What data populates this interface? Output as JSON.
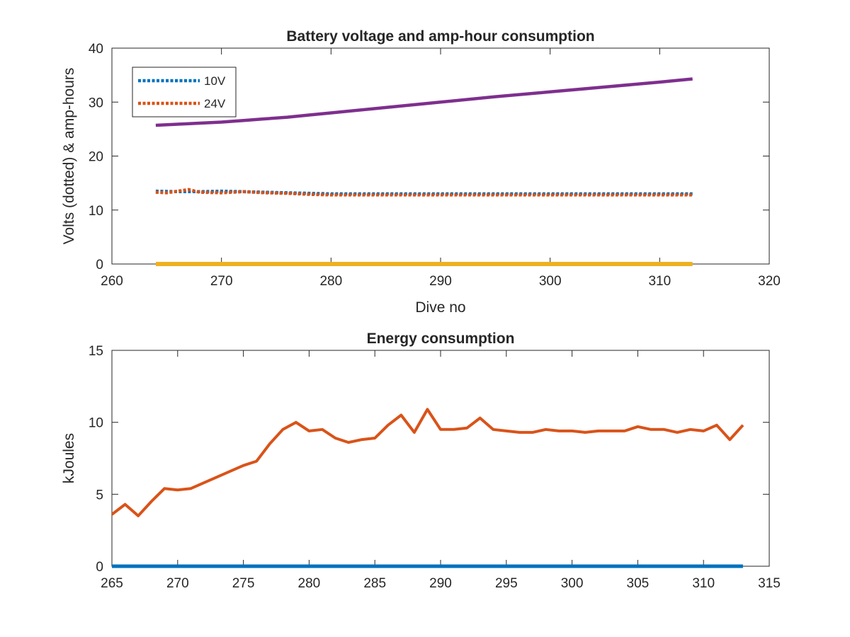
{
  "chart_data": [
    {
      "type": "line",
      "title": "Battery voltage and amp-hour consumption",
      "xlabel": "Dive no",
      "ylabel": "Volts (dotted) & amp-hours",
      "xlim": [
        260,
        320
      ],
      "ylim": [
        0,
        40
      ],
      "xticks": [
        260,
        270,
        280,
        290,
        300,
        310,
        320
      ],
      "yticks": [
        0,
        10,
        20,
        30,
        40
      ],
      "legend": {
        "placement": "top-left",
        "entries": [
          "10V",
          "24V"
        ]
      },
      "series": [
        {
          "name": "10V",
          "style": "dotted",
          "color": "#0072BD",
          "x": [
            264,
            266,
            268,
            270,
            272,
            274,
            276,
            278,
            280,
            285,
            290,
            295,
            300,
            305,
            310,
            313
          ],
          "y": [
            13.5,
            13.4,
            13.4,
            13.5,
            13.4,
            13.3,
            13.2,
            13.1,
            13.0,
            13.0,
            13.0,
            13.0,
            13.0,
            13.0,
            13.0,
            13.0
          ]
        },
        {
          "name": "24V",
          "style": "dotted",
          "color": "#D95319",
          "x": [
            264,
            265,
            266,
            267,
            268,
            270,
            272,
            274,
            276,
            278,
            280,
            285,
            290,
            295,
            300,
            305,
            310,
            313
          ],
          "y": [
            13.3,
            13.2,
            13.5,
            13.8,
            13.3,
            13.2,
            13.4,
            13.2,
            13.1,
            12.9,
            12.8,
            12.8,
            12.8,
            12.8,
            12.8,
            12.8,
            12.8,
            12.8
          ]
        },
        {
          "style": "solid",
          "color": "#EDB120",
          "x": [
            264,
            313
          ],
          "y": [
            0,
            0
          ]
        },
        {
          "style": "solid",
          "color": "#7E2F8E",
          "x": [
            264,
            266,
            268,
            270,
            272,
            274,
            276,
            278,
            280,
            285,
            290,
            295,
            300,
            305,
            310,
            313
          ],
          "y": [
            25.7,
            25.9,
            26.1,
            26.3,
            26.6,
            26.9,
            27.2,
            27.6,
            28.0,
            29.0,
            30.0,
            31.0,
            31.9,
            32.8,
            33.7,
            34.3
          ]
        }
      ]
    },
    {
      "type": "line",
      "title": "Energy consumption",
      "xlabel": "",
      "ylabel": "kJoules",
      "xlim": [
        265,
        315
      ],
      "ylim": [
        0,
        15
      ],
      "xticks": [
        265,
        270,
        275,
        280,
        285,
        290,
        295,
        300,
        305,
        310,
        315
      ],
      "yticks": [
        0,
        5,
        10,
        15
      ],
      "series": [
        {
          "style": "solid",
          "color": "#0072BD",
          "x": [
            265,
            313
          ],
          "y": [
            0,
            0
          ]
        },
        {
          "style": "solid",
          "color": "#D95319",
          "x": [
            265,
            266,
            267,
            268,
            269,
            270,
            271,
            272,
            273,
            274,
            275,
            276,
            277,
            278,
            279,
            280,
            281,
            282,
            283,
            284,
            285,
            286,
            287,
            288,
            289,
            290,
            291,
            292,
            293,
            294,
            295,
            296,
            297,
            298,
            299,
            300,
            301,
            302,
            303,
            304,
            305,
            306,
            307,
            308,
            309,
            310,
            311,
            312,
            313
          ],
          "y": [
            3.6,
            4.3,
            3.5,
            4.5,
            5.4,
            5.3,
            5.4,
            5.8,
            6.2,
            6.6,
            7.0,
            7.3,
            8.5,
            9.5,
            10.0,
            9.4,
            9.5,
            8.9,
            8.6,
            8.8,
            8.9,
            9.8,
            10.5,
            9.3,
            10.9,
            9.5,
            9.5,
            9.6,
            10.3,
            9.5,
            9.4,
            9.3,
            9.3,
            9.5,
            9.4,
            9.4,
            9.3,
            9.4,
            9.4,
            9.4,
            9.7,
            9.5,
            9.5,
            9.3,
            9.5,
            9.4,
            9.8,
            8.8,
            9.8
          ]
        }
      ]
    }
  ]
}
